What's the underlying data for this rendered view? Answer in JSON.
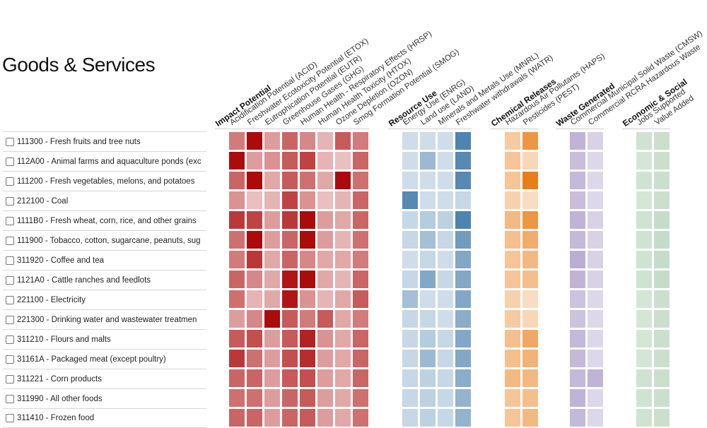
{
  "page": {
    "title": "Goods & Services"
  },
  "colors": {
    "impact": "#a80000",
    "resource": "#3e77a8",
    "chemical": "#e8780e",
    "waste": "#9c8bbf",
    "economic": "#8fbe94"
  },
  "chart_data": {
    "type": "heatmap",
    "groups": [
      {
        "key": "impact",
        "label": "Impact Potential",
        "columns": [
          "Acidification Potential (ACID)",
          "Freshwater Ecotoxicity Potential (ETOX)",
          "Eutrophication Potential (EUTR)",
          "Greenhouse Gases (GHG)",
          "Human Health - Respiratory Effects (HRSP)",
          "Human Health Toxicity (HTOX)",
          "Ozone Depletion (OZON)",
          "Smog Formation Potential (SMOG)"
        ]
      },
      {
        "key": "resource",
        "label": "Resource Use",
        "columns": [
          "Energy Use (ENRG)",
          "Land use (LAND)",
          "Minerals and Metals Use (MNRL)",
          "Freshwater withdrawals (WATR)"
        ]
      },
      {
        "key": "chemical",
        "label": "Chemical Releases",
        "columns": [
          "Hazardous Air Pollutants (HAPS)",
          "Pesticides (PEST)"
        ]
      },
      {
        "key": "waste",
        "label": "Waste Generated",
        "columns": [
          "Commercial Municipal Solid Waste (CMSW)",
          "Commercial RCRA Hazardous Waste"
        ]
      },
      {
        "key": "economic",
        "label": "Economic & Social",
        "columns": [
          "Jobs Supported",
          "Value Added"
        ]
      }
    ],
    "rows": [
      "111300 - Fresh fruits and tree nuts",
      "112A00 - Animal farms and aquaculture ponds (exc",
      "111200 - Fresh vegetables, melons, and potatoes",
      "212100 - Coal",
      "1111B0 - Fresh wheat, corn, rice, and other grains",
      "111900 - Tobacco, cotton, sugarcane, peanuts, sug",
      "311920 - Coffee and tea",
      "1121A0 - Cattle ranches and feedlots",
      "221100 - Electricity",
      "221300 - Drinking water and wastewater treatmen",
      "311210 - Flours and malts",
      "31161A - Packaged meat (except poultry)",
      "311221 - Corn products",
      "311990 - All other foods",
      "311410 - Frozen food"
    ],
    "values": [
      [
        0.45,
        0.95,
        0.3,
        0.55,
        0.4,
        0.2,
        0.6,
        0.45,
        0.15,
        0.15,
        0.15,
        0.9,
        0.3,
        0.75,
        0.6,
        0.3,
        0.35,
        0.4
      ],
      [
        0.95,
        0.3,
        0.35,
        0.6,
        0.7,
        0.2,
        0.15,
        0.55,
        0.15,
        0.45,
        0.15,
        0.85,
        0.35,
        0.2,
        0.5,
        0.25,
        0.3,
        0.4
      ],
      [
        0.55,
        0.95,
        0.25,
        0.6,
        0.5,
        0.25,
        0.95,
        0.5,
        0.15,
        0.15,
        0.15,
        0.85,
        0.35,
        0.95,
        0.55,
        0.25,
        0.35,
        0.4
      ],
      [
        0.35,
        0.15,
        0.2,
        0.7,
        0.35,
        0.15,
        0.2,
        0.55,
        0.85,
        0.15,
        0.15,
        0.2,
        0.25,
        0.15,
        0.5,
        0.25,
        0.3,
        0.4
      ],
      [
        0.75,
        0.7,
        0.3,
        0.75,
        0.95,
        0.3,
        0.25,
        0.55,
        0.2,
        0.3,
        0.25,
        0.9,
        0.45,
        0.75,
        0.6,
        0.3,
        0.35,
        0.45
      ],
      [
        0.5,
        0.95,
        0.3,
        0.55,
        0.95,
        0.3,
        0.2,
        0.5,
        0.2,
        0.4,
        0.2,
        0.7,
        0.4,
        0.55,
        0.55,
        0.3,
        0.35,
        0.45
      ],
      [
        0.45,
        0.75,
        0.25,
        0.55,
        0.4,
        0.25,
        0.25,
        0.45,
        0.15,
        0.2,
        0.15,
        0.6,
        0.35,
        0.45,
        0.65,
        0.3,
        0.35,
        0.45
      ],
      [
        0.55,
        0.4,
        0.25,
        0.9,
        0.95,
        0.25,
        0.2,
        0.55,
        0.2,
        0.6,
        0.2,
        0.6,
        0.35,
        0.4,
        0.6,
        0.3,
        0.35,
        0.45
      ],
      [
        0.5,
        0.2,
        0.25,
        0.9,
        0.35,
        0.2,
        0.25,
        0.6,
        0.4,
        0.15,
        0.15,
        0.6,
        0.25,
        0.15,
        0.45,
        0.25,
        0.3,
        0.4
      ],
      [
        0.3,
        0.4,
        0.95,
        0.6,
        0.45,
        0.6,
        0.25,
        0.45,
        0.2,
        0.2,
        0.15,
        0.55,
        0.3,
        0.2,
        0.45,
        0.25,
        0.3,
        0.4
      ],
      [
        0.6,
        0.65,
        0.3,
        0.6,
        0.85,
        0.35,
        0.25,
        0.55,
        0.2,
        0.3,
        0.2,
        0.6,
        0.4,
        0.6,
        0.55,
        0.25,
        0.3,
        0.4
      ],
      [
        0.75,
        0.5,
        0.3,
        0.65,
        0.8,
        0.3,
        0.25,
        0.55,
        0.2,
        0.45,
        0.2,
        0.6,
        0.4,
        0.5,
        0.55,
        0.25,
        0.3,
        0.4
      ],
      [
        0.55,
        0.55,
        0.3,
        0.6,
        0.65,
        0.3,
        0.25,
        0.55,
        0.2,
        0.25,
        0.2,
        0.55,
        0.45,
        0.45,
        0.55,
        0.6,
        0.35,
        0.4
      ],
      [
        0.5,
        0.5,
        0.3,
        0.55,
        0.6,
        0.3,
        0.25,
        0.5,
        0.2,
        0.25,
        0.2,
        0.5,
        0.35,
        0.4,
        0.6,
        0.25,
        0.35,
        0.4
      ],
      [
        0.55,
        0.55,
        0.3,
        0.55,
        0.6,
        0.3,
        0.25,
        0.5,
        0.2,
        0.25,
        0.2,
        0.5,
        0.35,
        0.45,
        0.55,
        0.25,
        0.35,
        0.4
      ]
    ]
  }
}
